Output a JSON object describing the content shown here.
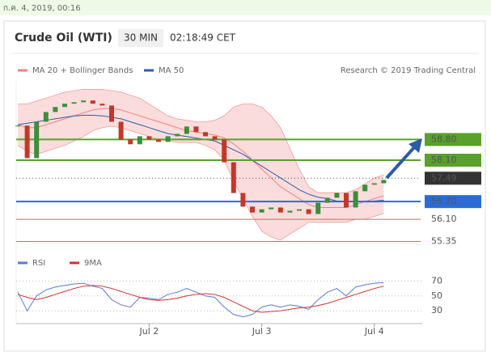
{
  "timestamp": "ก.ค. 4, 2019, 00:16",
  "chart_data": [
    {
      "type": "candlestick",
      "title": "Crude Oil (WTI)",
      "interval": "30 MIN",
      "time": "02:18:49 CET",
      "credit": "Research © 2019 Trading Central",
      "categories": [
        null,
        null,
        null,
        null,
        null,
        null,
        null,
        null,
        null,
        null,
        null,
        null,
        null,
        null,
        "Jul 2",
        null,
        null,
        null,
        null,
        null,
        null,
        null,
        null,
        null,
        null,
        null,
        "Jul 3",
        null,
        null,
        null,
        null,
        null,
        null,
        null,
        null,
        null,
        null,
        null,
        "Jul 4",
        null
      ],
      "values": [
        59.27,
        58.17,
        59.4,
        59.73,
        59.9,
        60.01,
        60.06,
        60.12,
        60.01,
        59.95,
        59.4,
        58.8,
        58.64,
        58.91,
        58.8,
        58.72,
        58.91,
        58.99,
        59.24,
        59.05,
        58.91,
        58.8,
        58.03,
        56.99,
        56.53,
        56.33,
        56.44,
        56.5,
        56.33,
        56.39,
        56.44,
        56.28,
        56.66,
        56.83,
        56.99,
        56.5,
        57.05,
        57.27,
        57.32,
        57.43
      ],
      "up_color": "#3a8f3a",
      "down_color": "#c0392b",
      "bands": {
        "name": "MA 20 + Bollinger Bands",
        "color": "#f08080",
        "ma": [
          59.3,
          59.2,
          59.2,
          59.3,
          59.4,
          59.5,
          59.6,
          59.7,
          59.8,
          59.85,
          59.85,
          59.8,
          59.7,
          59.6,
          59.5,
          59.4,
          59.3,
          59.2,
          59.1,
          59.05,
          59.0,
          58.95,
          58.85,
          58.65,
          58.4,
          58.1,
          57.8,
          57.5,
          57.2,
          57.0,
          56.8,
          56.6,
          56.5,
          56.5,
          56.5,
          56.5,
          56.6,
          56.7,
          56.8,
          56.9
        ],
        "upper": [
          60.0,
          60.0,
          60.1,
          60.2,
          60.3,
          60.4,
          60.45,
          60.5,
          60.5,
          60.5,
          60.45,
          60.4,
          60.3,
          60.2,
          60.0,
          59.8,
          59.6,
          59.5,
          59.45,
          59.4,
          59.4,
          59.45,
          59.6,
          59.9,
          60.0,
          60.0,
          59.9,
          59.6,
          59.2,
          58.5,
          57.8,
          57.2,
          57.0,
          57.0,
          57.0,
          57.0,
          57.1,
          57.3,
          57.5,
          57.6
        ],
        "lower": [
          58.6,
          58.4,
          58.3,
          58.4,
          58.5,
          58.6,
          58.75,
          58.9,
          59.1,
          59.2,
          59.25,
          59.2,
          59.1,
          59.0,
          58.9,
          58.8,
          58.75,
          58.7,
          58.7,
          58.7,
          58.6,
          58.45,
          58.1,
          57.4,
          56.8,
          56.2,
          55.7,
          55.5,
          55.4,
          55.6,
          55.8,
          56.0,
          56.0,
          56.0,
          56.0,
          56.0,
          56.1,
          56.1,
          56.2,
          56.3
        ]
      },
      "series": [
        {
          "name": "MA 50",
          "color": "#2b5ba8",
          "values": [
            59.3,
            59.35,
            59.4,
            59.45,
            59.5,
            59.55,
            59.6,
            59.62,
            59.62,
            59.6,
            59.55,
            59.5,
            59.4,
            59.3,
            59.2,
            59.1,
            59.0,
            58.95,
            58.9,
            58.85,
            58.8,
            58.75,
            58.6,
            58.45,
            58.3,
            58.1,
            57.9,
            57.7,
            57.5,
            57.3,
            57.1,
            56.95,
            56.85,
            56.8,
            56.72,
            56.7,
            56.7,
            56.7,
            56.72,
            56.75
          ]
        }
      ],
      "ylim": [
        55.2,
        60.7
      ],
      "levels": [
        {
          "value": 58.8,
          "label": "58.80",
          "color": "#5aa02c",
          "line": "solid",
          "style": "box"
        },
        {
          "value": 58.1,
          "label": "58.10",
          "color": "#5aa02c",
          "line": "solid",
          "style": "box"
        },
        {
          "value": 57.49,
          "label": "57.49",
          "color": "#333333",
          "line": "dotted",
          "style": "box"
        },
        {
          "value": 56.7,
          "label": "56.70",
          "color": "#2b6cd4",
          "line": "solid",
          "style": "box"
        },
        {
          "value": 56.1,
          "label": "56.10",
          "color": "#e06060",
          "line": "solid",
          "style": "text"
        },
        {
          "value": 55.35,
          "label": "55.35",
          "color": "#e06060",
          "line": "solid",
          "style": "text"
        }
      ]
    },
    {
      "type": "line",
      "series": [
        {
          "name": "RSI",
          "color": "#5b7bd5",
          "values": [
            55,
            30,
            50,
            58,
            62,
            64,
            66,
            67,
            63,
            60,
            45,
            38,
            35,
            48,
            47,
            45,
            52,
            55,
            60,
            55,
            50,
            48,
            35,
            25,
            22,
            25,
            35,
            38,
            35,
            38,
            36,
            32,
            45,
            55,
            60,
            50,
            62,
            65,
            67,
            68
          ]
        },
        {
          "name": "9MA",
          "color": "#d03030",
          "values": [
            52,
            48,
            45,
            48,
            52,
            56,
            60,
            63,
            64,
            63,
            60,
            56,
            52,
            48,
            45,
            44,
            45,
            47,
            50,
            52,
            53,
            52,
            48,
            42,
            36,
            30,
            28,
            29,
            30,
            32,
            34,
            35,
            37,
            40,
            44,
            48,
            52,
            56,
            60,
            63
          ]
        }
      ],
      "ylim": [
        15,
        78
      ],
      "yticks": [
        70,
        50,
        30
      ]
    }
  ]
}
